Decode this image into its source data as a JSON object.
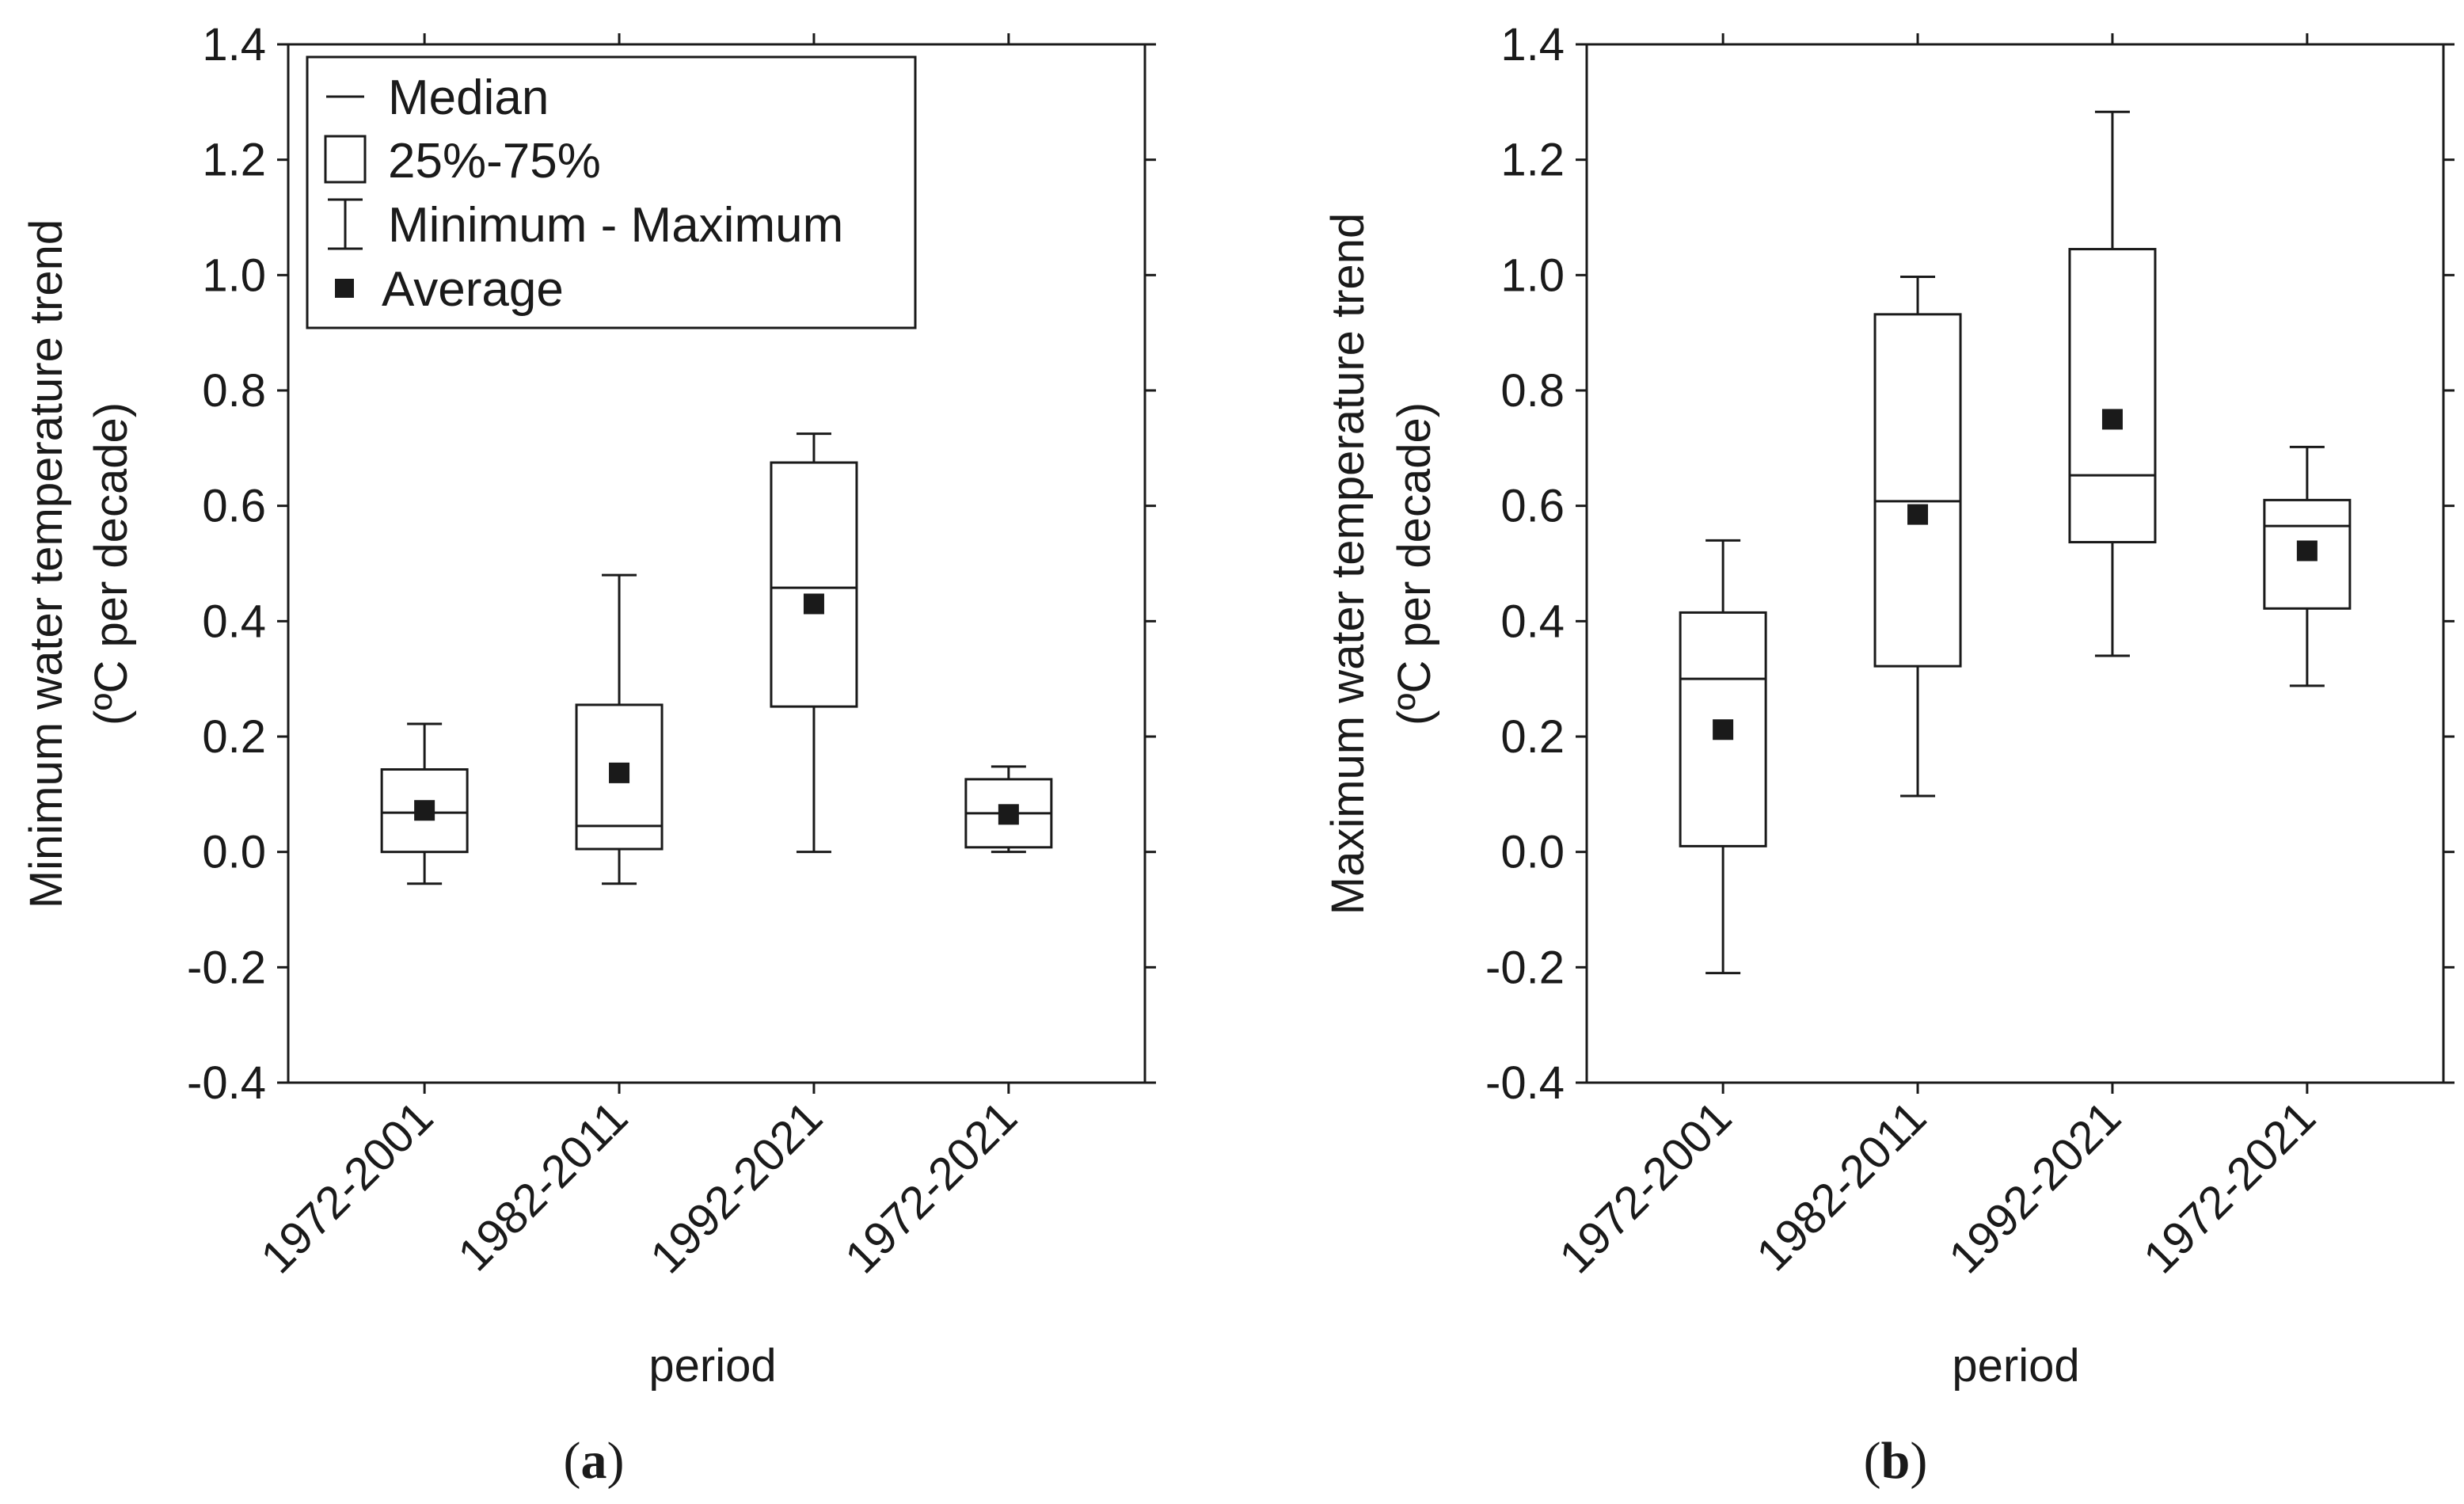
{
  "chart_data": [
    {
      "type": "box",
      "panel_label": "a",
      "title": "",
      "xlabel": "period",
      "ylabel_line1": "Minimum water temperature trend",
      "ylabel_line2": "(ºC per decade)",
      "ylim": [
        -0.4,
        1.4
      ],
      "yticks": [
        -0.4,
        -0.2,
        0.0,
        0.2,
        0.4,
        0.6,
        0.8,
        1.0,
        1.2,
        1.4
      ],
      "ytick_labels": [
        "-0.4",
        "-0.2",
        "0.0",
        "0.2",
        "0.4",
        "0.6",
        "0.8",
        "1.0",
        "1.2",
        "1.4"
      ],
      "categories": [
        "1972-2001",
        "1982-2011",
        "1992-2021",
        "1972-2021"
      ],
      "boxes": [
        {
          "min": -0.055,
          "q1": 0.0,
          "median": 0.068,
          "q3": 0.143,
          "max": 0.222,
          "mean": 0.072
        },
        {
          "min": -0.055,
          "q1": 0.005,
          "median": 0.045,
          "q3": 0.255,
          "max": 0.48,
          "mean": 0.137
        },
        {
          "min": 0.0,
          "q1": 0.252,
          "median": 0.458,
          "q3": 0.675,
          "max": 0.725,
          "mean": 0.43
        },
        {
          "min": 0.0,
          "q1": 0.008,
          "median": 0.067,
          "q3": 0.126,
          "max": 0.148,
          "mean": 0.065
        }
      ],
      "legend": {
        "position": "top-left",
        "entries": [
          "Median",
          "25%-75%",
          "Minimum - Maximum",
          "Average"
        ]
      }
    },
    {
      "type": "box",
      "panel_label": "b",
      "title": "",
      "xlabel": "period",
      "ylabel_line1": "Maximum water temperature trend",
      "ylabel_line2": "(ºC per decade)",
      "ylim": [
        -0.4,
        1.4
      ],
      "yticks": [
        -0.4,
        -0.2,
        0.0,
        0.2,
        0.4,
        0.6,
        0.8,
        1.0,
        1.2,
        1.4
      ],
      "ytick_labels": [
        "-0.4",
        "-0.2",
        "0.0",
        "0.2",
        "0.4",
        "0.6",
        "0.8",
        "1.0",
        "1.2",
        "1.4"
      ],
      "categories": [
        "1972-2001",
        "1982-2011",
        "1992-2021",
        "1972-2021"
      ],
      "boxes": [
        {
          "min": -0.21,
          "q1": 0.01,
          "median": 0.3,
          "q3": 0.415,
          "max": 0.54,
          "mean": 0.212
        },
        {
          "min": 0.097,
          "q1": 0.322,
          "median": 0.608,
          "q3": 0.932,
          "max": 0.997,
          "mean": 0.585
        },
        {
          "min": 0.34,
          "q1": 0.537,
          "median": 0.653,
          "q3": 1.045,
          "max": 1.283,
          "mean": 0.75
        },
        {
          "min": 0.288,
          "q1": 0.422,
          "median": 0.565,
          "q3": 0.61,
          "max": 0.702,
          "mean": 0.522
        }
      ],
      "legend": null
    }
  ],
  "colors": {
    "line": "#1a1a1a",
    "background": "#ffffff"
  }
}
